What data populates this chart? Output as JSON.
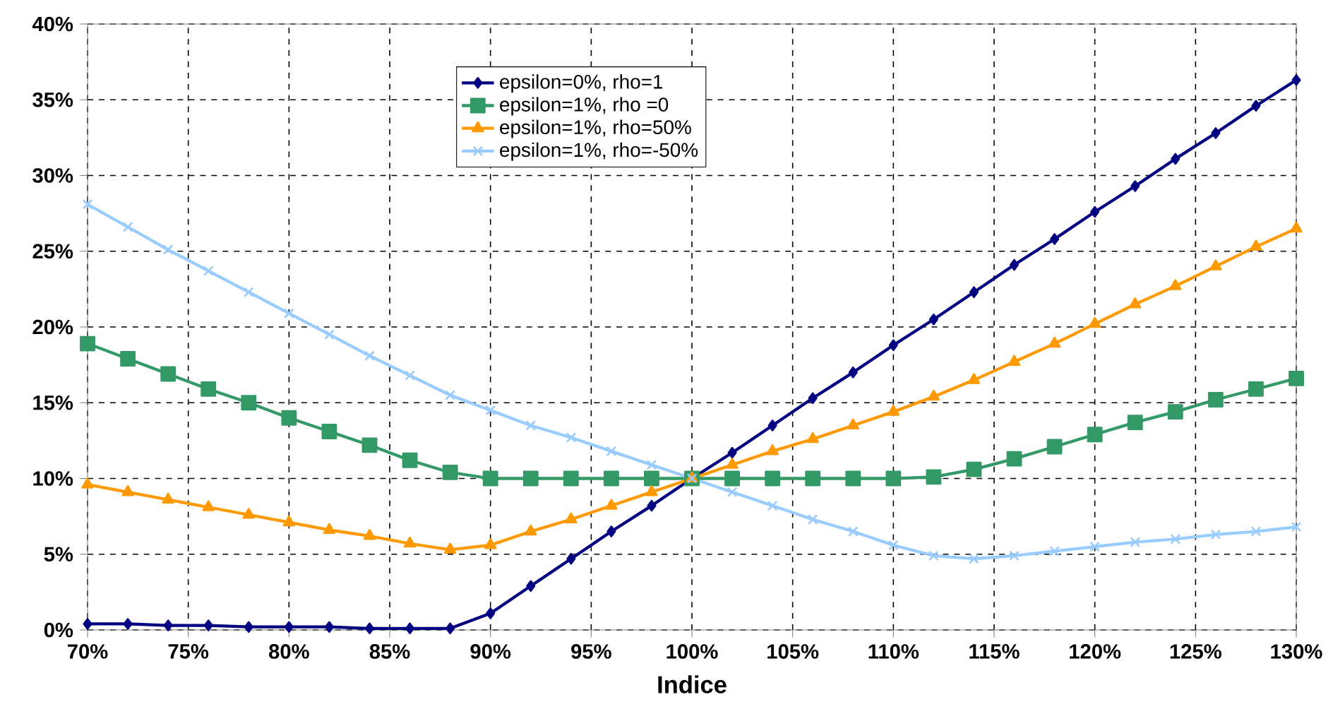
{
  "chart_data": {
    "type": "line",
    "xlabel": "Indice",
    "x": [
      70,
      72,
      74,
      76,
      78,
      80,
      82,
      84,
      86,
      88,
      90,
      92,
      94,
      96,
      98,
      100,
      102,
      104,
      106,
      108,
      110,
      112,
      114,
      116,
      118,
      120,
      122,
      124,
      126,
      128,
      130
    ],
    "series": [
      {
        "name": "epsilon=0%, rho=1",
        "color": "#000080",
        "marker": "diamond",
        "values": [
          0.4,
          0.4,
          0.3,
          0.3,
          0.2,
          0.2,
          0.2,
          0.1,
          0.1,
          0.1,
          1.1,
          2.9,
          4.7,
          6.5,
          8.2,
          10,
          11.7,
          13.5,
          15.3,
          17.0,
          18.8,
          20.5,
          22.3,
          24.1,
          25.8,
          27.6,
          29.3,
          31.1,
          32.8,
          34.6,
          36.3
        ]
      },
      {
        "name": "epsilon=1%, rho =0",
        "color": "#339966",
        "marker": "square",
        "values": [
          18.9,
          17.9,
          16.9,
          15.9,
          15.0,
          14.0,
          13.1,
          12.2,
          11.2,
          10.4,
          10.0,
          10.0,
          10.0,
          10.0,
          10.0,
          10.0,
          10.0,
          10.0,
          10.0,
          10.0,
          10.0,
          10.1,
          10.6,
          11.3,
          12.1,
          12.9,
          13.7,
          14.4,
          15.2,
          15.9,
          16.6
        ]
      },
      {
        "name": "epsilon=1%, rho=50%",
        "color": "#ff9900",
        "marker": "triangle",
        "values": [
          9.6,
          9.1,
          8.6,
          8.1,
          7.6,
          7.1,
          6.6,
          6.2,
          5.7,
          5.3,
          5.6,
          6.5,
          7.3,
          8.2,
          9.1,
          10,
          10.9,
          11.8,
          12.6,
          13.5,
          14.4,
          15.4,
          16.5,
          17.7,
          18.9,
          20.2,
          21.5,
          22.7,
          24.0,
          25.3,
          26.5
        ]
      },
      {
        "name": "epsilon=1%, rho=-50%",
        "color": "#99ccff",
        "marker": "cross",
        "values": [
          28.1,
          26.6,
          25.1,
          23.7,
          22.3,
          20.9,
          19.5,
          18.1,
          16.8,
          15.5,
          14.5,
          13.5,
          12.7,
          11.8,
          10.9,
          10,
          9.1,
          8.2,
          7.3,
          6.5,
          5.6,
          4.9,
          4.7,
          4.9,
          5.2,
          5.5,
          5.8,
          6.0,
          6.3,
          6.5,
          6.8
        ]
      }
    ],
    "xlim": [
      70,
      130
    ],
    "xticks": [
      {
        "value": 70,
        "label": "70%"
      },
      {
        "value": 75,
        "label": "75%"
      },
      {
        "value": 80,
        "label": "80%"
      },
      {
        "value": 85,
        "label": "85%"
      },
      {
        "value": 90,
        "label": "90%"
      },
      {
        "value": 95,
        "label": "95%"
      },
      {
        "value": 100,
        "label": "100%"
      },
      {
        "value": 105,
        "label": "105%"
      },
      {
        "value": 110,
        "label": "110%"
      },
      {
        "value": 115,
        "label": "115%"
      },
      {
        "value": 120,
        "label": "120%"
      },
      {
        "value": 125,
        "label": "125%"
      },
      {
        "value": 130,
        "label": "130%"
      }
    ],
    "ylim": [
      0,
      40
    ],
    "yticks": [
      {
        "value": 0,
        "label": "0%"
      },
      {
        "value": 5,
        "label": "5%"
      },
      {
        "value": 10,
        "label": "10%"
      },
      {
        "value": 15,
        "label": "15%"
      },
      {
        "value": 20,
        "label": "20%"
      },
      {
        "value": 25,
        "label": "25%"
      },
      {
        "value": 30,
        "label": "30%"
      },
      {
        "value": 35,
        "label": "35%"
      },
      {
        "value": 40,
        "label": "40%"
      }
    ],
    "grid": true,
    "legend": "top",
    "line_style": "solid"
  }
}
